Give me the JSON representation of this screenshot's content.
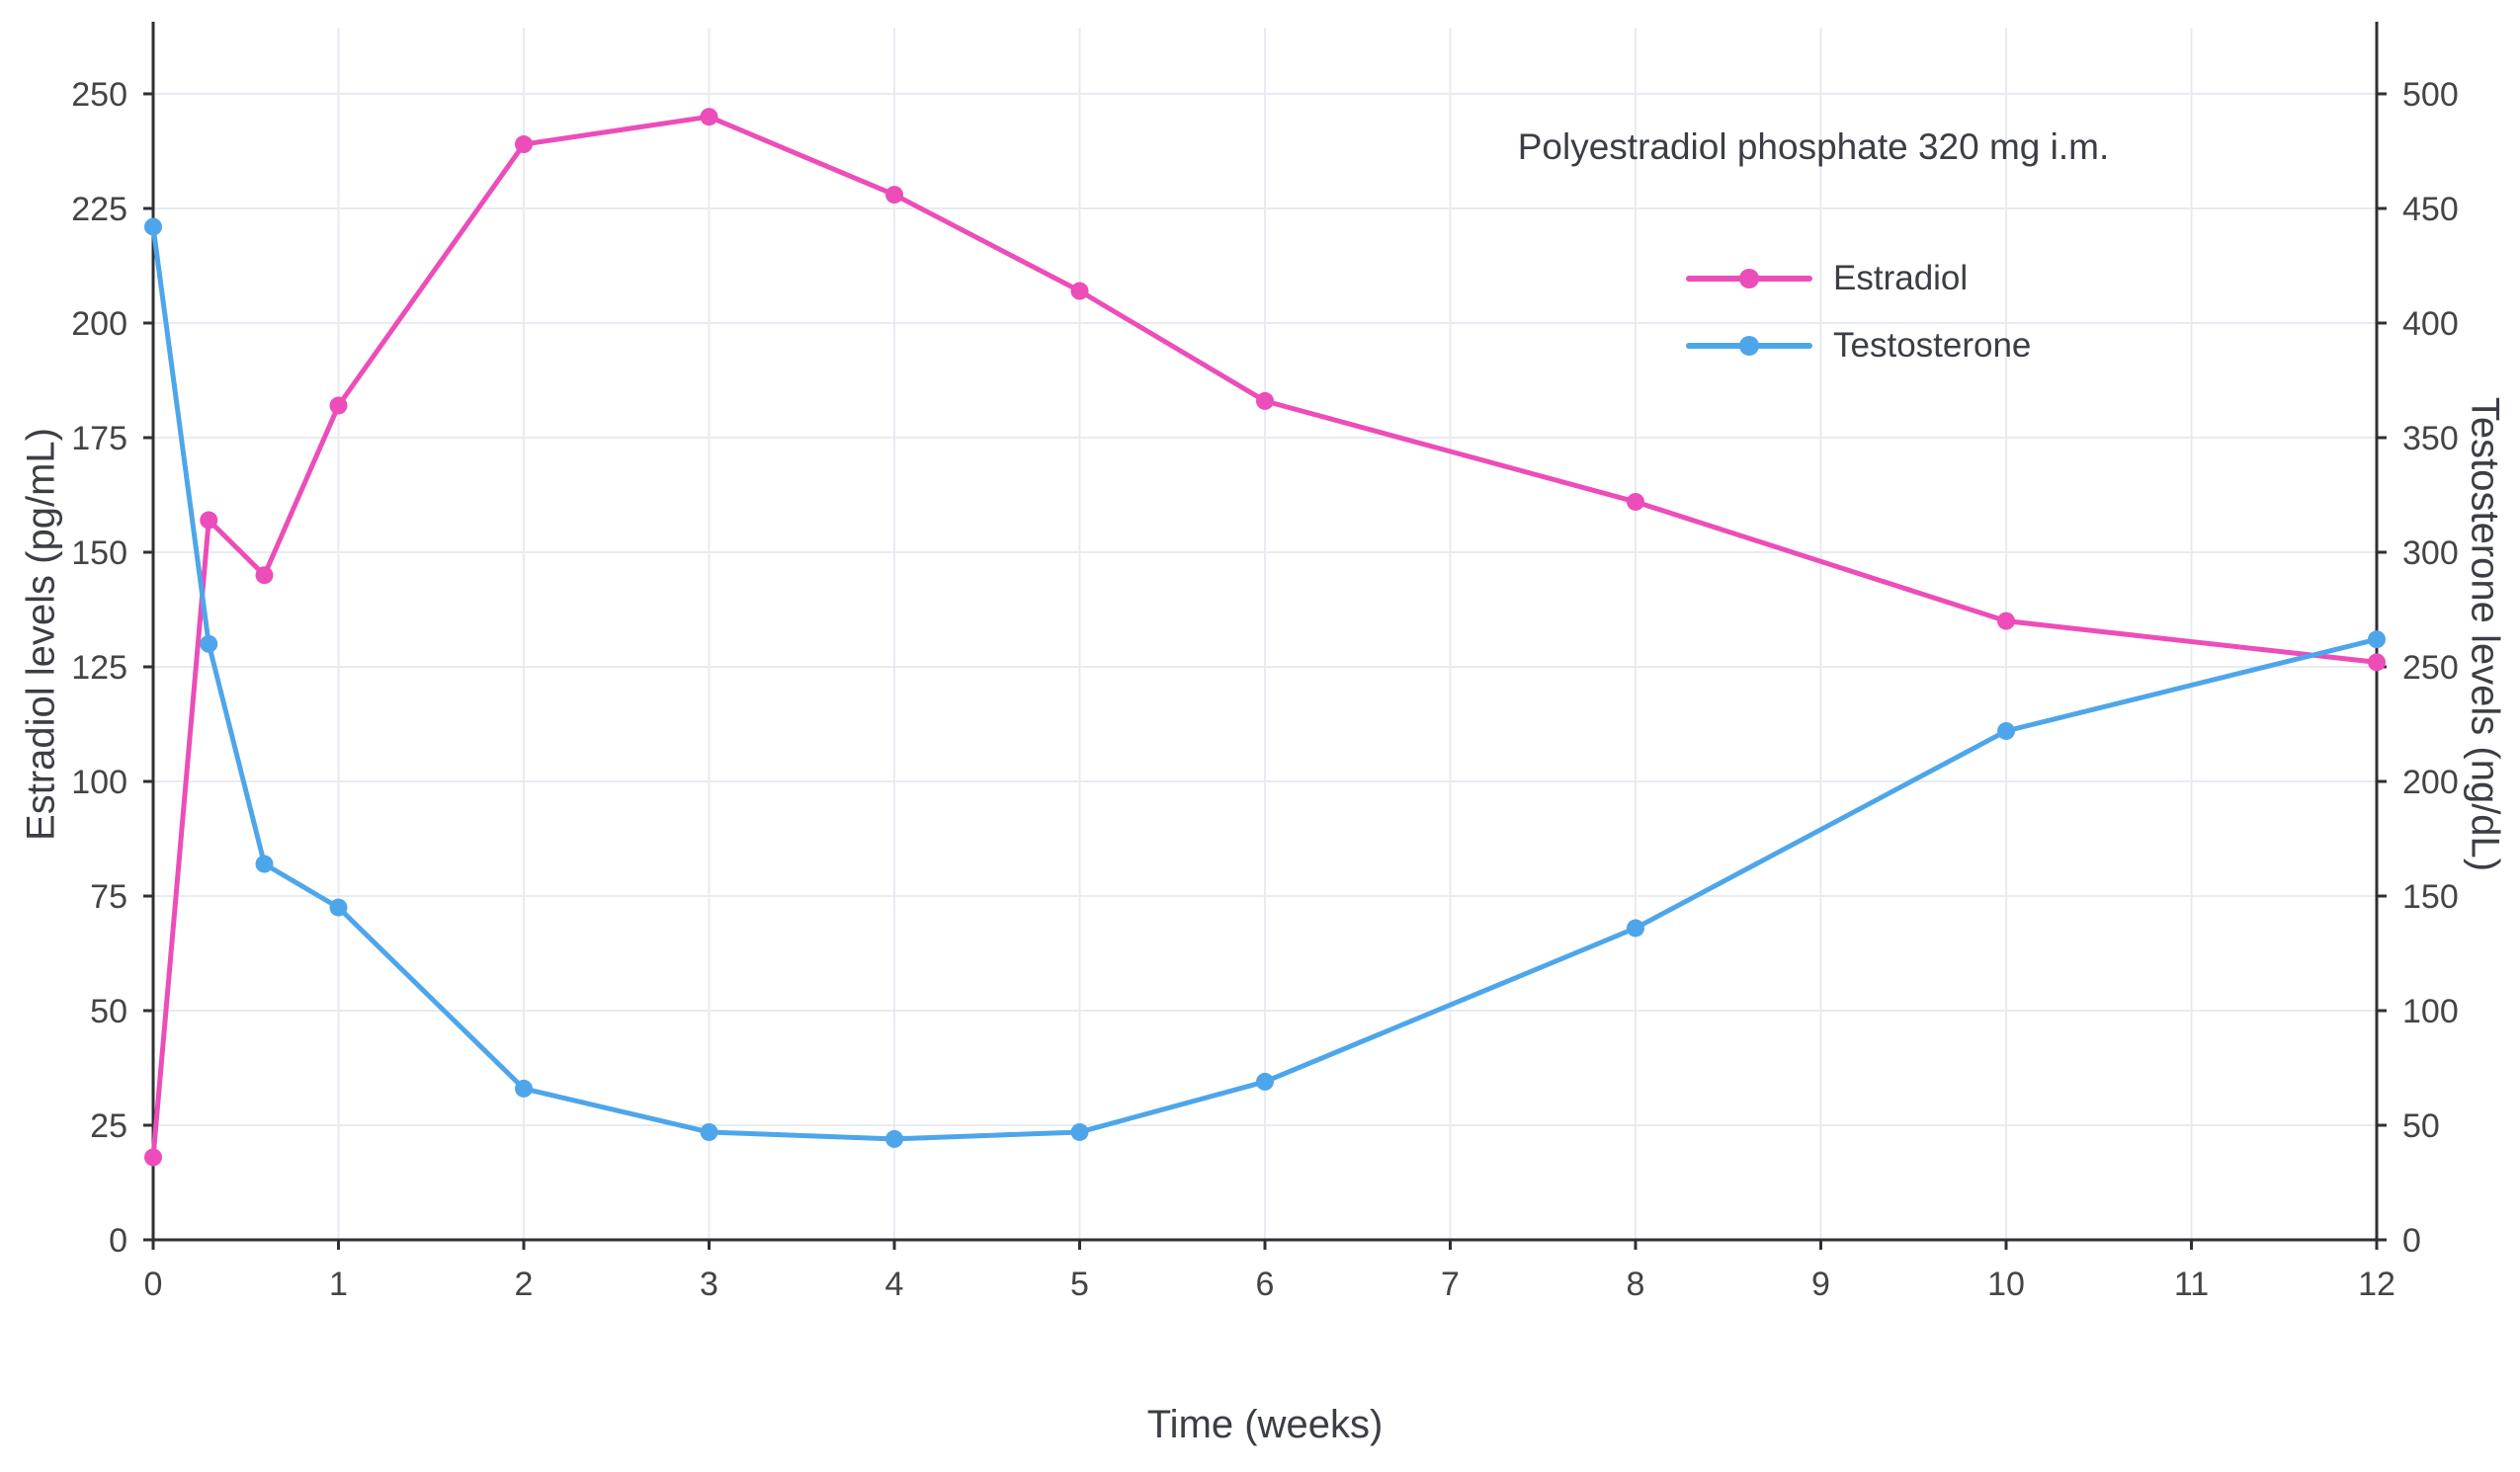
{
  "chart_data": {
    "type": "line",
    "title": "",
    "annotation": "Polyestradiol phosphate 320 mg i.m.",
    "xlabel": "Time (weeks)",
    "ylabel_left": "Estradiol levels (pg/mL)",
    "ylabel_right": "Testosterone levels (ng/dL)",
    "x_axis": {
      "min": 0,
      "max": 12,
      "tick_step": 1
    },
    "left_axis": {
      "min": 0,
      "max": 250,
      "tick_step": 25
    },
    "right_axis": {
      "min": 0,
      "max": 500,
      "tick_step": 50
    },
    "grid": true,
    "legend_position": "inside-top-right",
    "x": [
      0,
      0.3,
      0.6,
      1,
      2,
      3,
      4,
      5,
      6,
      8,
      10,
      12
    ],
    "series": [
      {
        "name": "Estradiol",
        "axis": "left",
        "unit": "pg/mL",
        "color": "#EC4DB9",
        "values": [
          18,
          157,
          145,
          182,
          239,
          245,
          228,
          207,
          183,
          161,
          135,
          126
        ]
      },
      {
        "name": "Testosterone",
        "axis": "right",
        "unit": "ng/dL",
        "color": "#4EA6EA",
        "values": [
          442,
          260,
          164,
          145,
          66,
          47,
          44,
          47,
          69,
          136,
          222,
          262
        ]
      }
    ]
  },
  "style_colors": {
    "grid": "#E9EBF2",
    "axis_line": "#2F3033",
    "tick_text": "#444444",
    "body_text": "#3B3E44",
    "background": "#FFFFFF"
  }
}
